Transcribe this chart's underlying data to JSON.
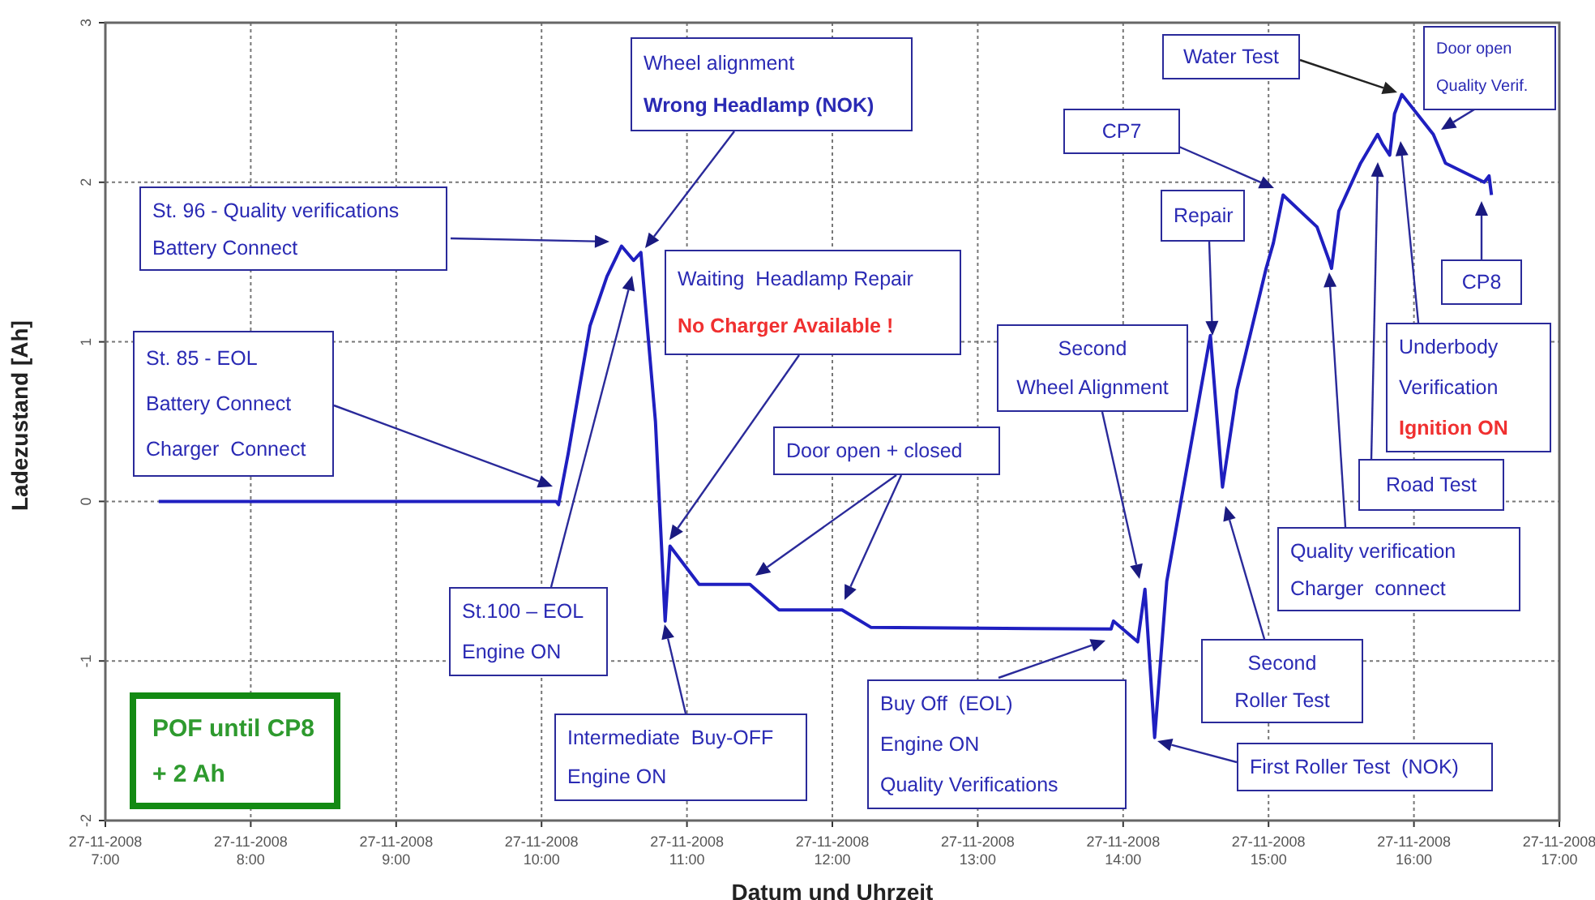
{
  "chart_data": {
    "type": "line",
    "xlabel": "Datum und Uhrzeit",
    "ylabel": "Ladezustand [Ah]",
    "color": "#1f1fc0",
    "grid": true,
    "x": [
      "2008-11-27T07:22",
      "2008-11-27T10:06",
      "2008-11-27T10:07",
      "2008-11-27T10:11",
      "2008-11-27T10:20",
      "2008-11-27T10:27",
      "2008-11-27T10:33",
      "2008-11-27T10:38",
      "2008-11-27T10:41",
      "2008-11-27T10:47",
      "2008-11-27T10:51",
      "2008-11-27T10:53",
      "2008-11-27T11:05",
      "2008-11-27T11:26",
      "2008-11-27T11:38",
      "2008-11-27T12:04",
      "2008-11-27T12:16",
      "2008-11-27T13:55",
      "2008-11-27T13:56",
      "2008-11-27T14:06",
      "2008-11-27T14:09",
      "2008-11-27T14:13",
      "2008-11-27T14:18",
      "2008-11-27T14:36",
      "2008-11-27T14:41",
      "2008-11-27T14:47",
      "2008-11-27T14:59",
      "2008-11-27T15:02",
      "2008-11-27T15:06",
      "2008-11-27T15:20",
      "2008-11-27T15:25",
      "2008-11-27T15:26",
      "2008-11-27T15:29",
      "2008-11-27T15:38",
      "2008-11-27T15:45",
      "2008-11-27T15:47",
      "2008-11-27T15:50",
      "2008-11-27T15:52",
      "2008-11-27T15:55",
      "2008-11-27T16:08",
      "2008-11-27T16:13",
      "2008-11-27T16:29",
      "2008-11-27T16:31",
      "2008-11-27T16:32"
    ],
    "values": [
      0,
      0,
      -0.02,
      0.3,
      1.1,
      1.41,
      1.6,
      1.51,
      1.56,
      0.5,
      -0.75,
      -0.28,
      -0.52,
      -0.52,
      -0.68,
      -0.68,
      -0.79,
      -0.8,
      -0.75,
      -0.88,
      -0.55,
      -1.48,
      -0.5,
      1.04,
      0.09,
      0.7,
      1.46,
      1.62,
      1.92,
      1.72,
      1.51,
      1.46,
      1.82,
      2.12,
      2.3,
      2.24,
      2.17,
      2.43,
      2.55,
      2.3,
      2.12,
      2,
      2.04,
      1.92
    ],
    "xlim": [
      "2008-11-27T07:00",
      "2008-11-27T17:00"
    ],
    "ylim": [
      -2,
      3
    ],
    "yticks": [
      -2,
      -1,
      0,
      1,
      2,
      3
    ],
    "xticks": [
      {
        "value": "2008-11-27T07:00",
        "label": "27-11-2008\n7:00"
      },
      {
        "value": "2008-11-27T08:00",
        "label": "27-11-2008\n8:00"
      },
      {
        "value": "2008-11-27T09:00",
        "label": "27-11-2008\n9:00"
      },
      {
        "value": "2008-11-27T10:00",
        "label": "27-11-2008\n10:00"
      },
      {
        "value": "2008-11-27T11:00",
        "label": "27-11-2008\n11:00"
      },
      {
        "value": "2008-11-27T12:00",
        "label": "27-11-2008\n12:00"
      },
      {
        "value": "2008-11-27T13:00",
        "label": "27-11-2008\n13:00"
      },
      {
        "value": "2008-11-27T14:00",
        "label": "27-11-2008\n14:00"
      },
      {
        "value": "2008-11-27T15:00",
        "label": "27-11-2008\n15:00"
      },
      {
        "value": "2008-11-27T16:00",
        "label": "27-11-2008\n16:00"
      },
      {
        "value": "2008-11-27T17:00",
        "label": "27-11-2008\n17:00"
      }
    ],
    "annotations": [
      "St. 85 - EOL\nBattery Connect\nCharger  Connect",
      "St. 96 - Quality verifications\nBattery Connect",
      "Wheel alignment\nWrong Headlamp (NOK)",
      "Waiting  Headlamp Repair\nNo Charger Available !",
      "Door open + closed",
      "St.100 – EOL\nEngine ON",
      "Intermediate  Buy-OFF\nEngine ON",
      "Buy Off  (EOL)\nEngine ON\nQuality Verifications",
      "Second\nWheel Alignment",
      "First Roller Test  (NOK)",
      "Repair",
      "Second\nRoller Test",
      "CP7",
      "Water Test",
      "Door open\nQuality Verif.",
      "CP8",
      "Underbody\nVerification\nIgnition ON",
      "Road Test",
      "Quality verification\nCharger  connect",
      "POF until CP8\n+ 2 Ah"
    ]
  }
}
